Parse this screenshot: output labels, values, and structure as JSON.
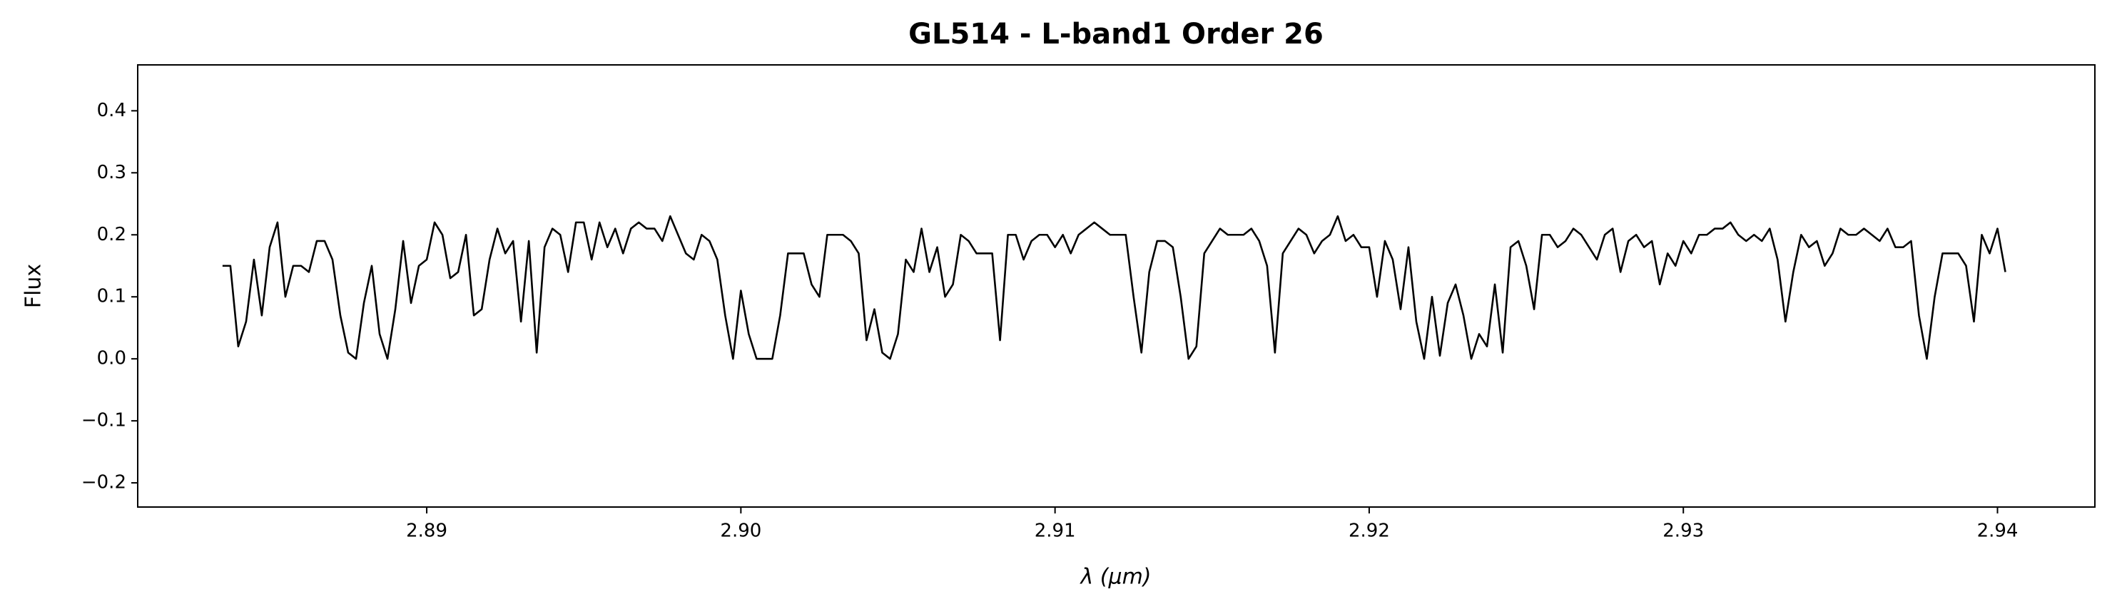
{
  "chart_data": {
    "type": "line",
    "title": "GL514 - L-band1 Order 26",
    "xlabel": "λ (μm)",
    "ylabel": "Flux",
    "xlim": [
      2.8808,
      2.9431
    ],
    "ylim": [
      -0.239,
      0.474
    ],
    "xticks": [
      2.89,
      {
        "value": 2.9,
        "label": "2.90"
      },
      2.91,
      2.92,
      2.93,
      2.94
    ],
    "yticks": [
      {
        "value": -0.2,
        "label": "−0.2"
      },
      {
        "value": -0.1,
        "label": "−0.1"
      },
      {
        "value": 0,
        "label": "0.0"
      },
      0.1,
      0.2,
      0.3,
      0.4
    ],
    "grid": false,
    "x": [
      2.8835,
      2.88375,
      2.884,
      2.88425,
      2.8845,
      2.88475,
      2.885,
      2.88525,
      2.8855,
      2.88575,
      2.886,
      2.88625,
      2.8865,
      2.88675,
      2.887,
      2.88725,
      2.8875,
      2.88775,
      2.888,
      2.88825,
      2.8885,
      2.88875,
      2.889,
      2.88925,
      2.8895,
      2.88975,
      2.89,
      2.89025,
      2.8905,
      2.89075,
      2.891,
      2.89125,
      2.8915,
      2.89175,
      2.892,
      2.89225,
      2.8925,
      2.89275,
      2.893,
      2.89325,
      2.8935,
      2.89375,
      2.894,
      2.89425,
      2.8945,
      2.89475,
      2.895,
      2.89525,
      2.8955,
      2.89575,
      2.896,
      2.89625,
      2.8965,
      2.89675,
      2.897,
      2.89725,
      2.8975,
      2.89775,
      2.898,
      2.89825,
      2.8985,
      2.89875,
      2.899,
      2.89925,
      2.8995,
      2.89975,
      2.9,
      2.90025,
      2.9005,
      2.90075,
      2.901,
      2.90125,
      2.9015,
      2.90175,
      2.902,
      2.90225,
      2.9025,
      2.90275,
      2.903,
      2.90325,
      2.9035,
      2.90375,
      2.904,
      2.90425,
      2.9045,
      2.90475,
      2.905,
      2.90525,
      2.9055,
      2.90575,
      2.906,
      2.90625,
      2.9065,
      2.90675,
      2.907,
      2.90725,
      2.9075,
      2.90775,
      2.908,
      2.90825,
      2.9085,
      2.90875,
      2.909,
      2.90925,
      2.9095,
      2.90975,
      2.91,
      2.91025,
      2.9105,
      2.91075,
      2.911,
      2.91125,
      2.9115,
      2.91175,
      2.912,
      2.91225,
      2.9125,
      2.91275,
      2.913,
      2.91325,
      2.9135,
      2.91375,
      2.914,
      2.91425,
      2.9145,
      2.91475,
      2.915,
      2.91525,
      2.9155,
      2.91575,
      2.916,
      2.91625,
      2.9165,
      2.91675,
      2.917,
      2.91725,
      2.9175,
      2.91775,
      2.918,
      2.91825,
      2.9185,
      2.91875,
      2.919,
      2.91925,
      2.9195,
      2.91975,
      2.92,
      2.92025,
      2.9205,
      2.92075,
      2.921,
      2.92125,
      2.9215,
      2.92175,
      2.922,
      2.92225,
      2.9225,
      2.92275,
      2.923,
      2.92325,
      2.9235,
      2.92375,
      2.924,
      2.92425,
      2.9245,
      2.92475,
      2.925,
      2.92525,
      2.9255,
      2.92575,
      2.926,
      2.92625,
      2.9265,
      2.92675,
      2.927,
      2.92725,
      2.9275,
      2.92775,
      2.928,
      2.92825,
      2.9285,
      2.92875,
      2.929,
      2.92925,
      2.9295,
      2.92975,
      2.93,
      2.93025,
      2.9305,
      2.93075,
      2.931,
      2.93125,
      2.9315,
      2.93175,
      2.932,
      2.93225,
      2.9325,
      2.93275,
      2.933,
      2.93325,
      2.9335,
      2.93375,
      2.934,
      2.93425,
      2.9345,
      2.93475,
      2.935,
      2.93525,
      2.9355,
      2.93575,
      2.936,
      2.93625,
      2.9365,
      2.93675,
      2.937,
      2.93725,
      2.9375,
      2.93775,
      2.938,
      2.93825,
      2.9385,
      2.93875,
      2.939,
      2.93925,
      2.9395,
      2.93975,
      2.94,
      2.94025
    ],
    "series": [
      {
        "color": "#000000",
        "values": [
          0.15,
          0.15,
          0.02,
          0.06,
          0.16,
          0.07,
          0.18,
          0.22,
          0.1,
          0.15,
          0.15,
          0.14,
          0.19,
          0.19,
          0.16,
          0.07,
          0.01,
          0.0,
          0.09,
          0.15,
          0.04,
          0.0,
          0.08,
          0.19,
          0.09,
          0.15,
          0.16,
          0.22,
          0.2,
          0.13,
          0.14,
          0.2,
          0.07,
          0.08,
          0.16,
          0.21,
          0.17,
          0.19,
          0.06,
          0.19,
          0.01,
          0.18,
          0.21,
          0.2,
          0.14,
          0.22,
          0.22,
          0.16,
          0.22,
          0.18,
          0.21,
          0.17,
          0.21,
          0.22,
          0.21,
          0.21,
          0.19,
          0.23,
          0.2,
          0.17,
          0.16,
          0.2,
          0.19,
          0.16,
          0.07,
          0.0,
          0.11,
          0.04,
          0.0,
          0.0,
          0.0,
          0.07,
          0.17,
          0.17,
          0.17,
          0.12,
          0.1,
          0.2,
          0.2,
          0.2,
          0.19,
          0.17,
          0.03,
          0.08,
          0.01,
          0.0,
          0.04,
          0.16,
          0.14,
          0.21,
          0.14,
          0.18,
          0.1,
          0.12,
          0.2,
          0.19,
          0.17,
          0.17,
          0.17,
          0.03,
          0.2,
          0.2,
          0.16,
          0.19,
          0.2,
          0.2,
          0.18,
          0.2,
          0.17,
          0.2,
          0.21,
          0.22,
          0.21,
          0.2,
          0.2,
          0.2,
          0.1,
          0.01,
          0.14,
          0.19,
          0.19,
          0.18,
          0.1,
          0.0,
          0.02,
          0.17,
          0.19,
          0.21,
          0.2,
          0.2,
          0.2,
          0.21,
          0.19,
          0.15,
          0.01,
          0.17,
          0.19,
          0.21,
          0.2,
          0.17,
          0.19,
          0.2,
          0.23,
          0.19,
          0.2,
          0.18,
          0.18,
          0.1,
          0.19,
          0.16,
          0.08,
          0.18,
          0.06,
          0.0,
          0.1,
          0.005,
          0.09,
          0.12,
          0.07,
          0.0,
          0.04,
          0.02,
          0.12,
          0.01,
          0.18,
          0.19,
          0.15,
          0.08,
          0.2,
          0.2,
          0.18,
          0.19,
          0.21,
          0.2,
          0.18,
          0.16,
          0.2,
          0.21,
          0.14,
          0.19,
          0.2,
          0.18,
          0.19,
          0.12,
          0.17,
          0.15,
          0.19,
          0.17,
          0.2,
          0.2,
          0.21,
          0.21,
          0.22,
          0.2,
          0.19,
          0.2,
          0.19,
          0.21,
          0.16,
          0.06,
          0.14,
          0.2,
          0.18,
          0.19,
          0.15,
          0.17,
          0.21,
          0.2,
          0.2,
          0.21,
          0.2,
          0.19,
          0.21,
          0.18,
          0.18,
          0.19,
          0.07,
          0.0,
          0.1,
          0.17,
          0.17,
          0.17,
          0.15,
          0.06,
          0.2,
          0.17,
          0.21,
          0.14
        ]
      }
    ]
  }
}
